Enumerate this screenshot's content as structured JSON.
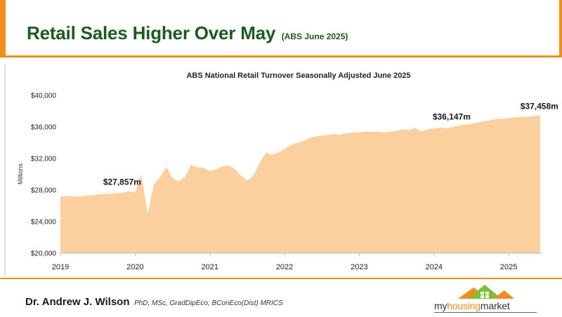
{
  "header": {
    "title": "Retail Sales Higher Over May",
    "subtitle": "(ABS June 2025)"
  },
  "footer": {
    "author": "Dr. Andrew J. Wilson",
    "credentials": "PhD, MSc, GradDipEco, BConEco(Dist) MRICS",
    "logo_parts": [
      "my",
      "housing",
      "market"
    ]
  },
  "colors": {
    "accent": "#f28c1e",
    "title": "#1c5a1f",
    "area_fill": "#fccf9f"
  },
  "chart_data": {
    "type": "area",
    "title": "ABS National Retail Turnover Seasonally Adjusted June 2025",
    "ylabel": "Millions",
    "xlabel": "",
    "ylim": [
      20000,
      40000
    ],
    "yticks": [
      20000,
      24000,
      28000,
      32000,
      36000,
      40000
    ],
    "ytick_labels": [
      "$20,000",
      "$24,000",
      "$28,000",
      "$32,000",
      "$36,000",
      "$40,000"
    ],
    "xlim": [
      2019.0,
      2025.45
    ],
    "xticks": [
      2019,
      2020,
      2021,
      2022,
      2023,
      2024,
      2025
    ],
    "xtick_labels": [
      "2019",
      "2020",
      "2021",
      "2022",
      "2023",
      "2024",
      "2025"
    ],
    "grid": false,
    "series": [
      {
        "name": "",
        "x": [
          2019.0,
          2019.08,
          2019.17,
          2019.25,
          2019.33,
          2019.42,
          2019.5,
          2019.58,
          2019.67,
          2019.75,
          2019.83,
          2019.92,
          2020.0,
          2020.08,
          2020.17,
          2020.25,
          2020.33,
          2020.42,
          2020.5,
          2020.58,
          2020.67,
          2020.75,
          2020.83,
          2020.92,
          2021.0,
          2021.08,
          2021.17,
          2021.25,
          2021.33,
          2021.42,
          2021.5,
          2021.58,
          2021.67,
          2021.75,
          2021.83,
          2021.92,
          2022.0,
          2022.08,
          2022.17,
          2022.25,
          2022.33,
          2022.42,
          2022.5,
          2022.58,
          2022.67,
          2022.75,
          2022.83,
          2022.92,
          2023.0,
          2023.08,
          2023.17,
          2023.25,
          2023.33,
          2023.42,
          2023.5,
          2023.58,
          2023.67,
          2023.75,
          2023.83,
          2023.92,
          2024.0,
          2024.08,
          2024.17,
          2024.25,
          2024.33,
          2024.42,
          2024.5,
          2024.58,
          2024.67,
          2024.75,
          2024.83,
          2024.92,
          2025.0,
          2025.08,
          2025.17,
          2025.25,
          2025.33,
          2025.42
        ],
        "values": [
          27100,
          27250,
          27200,
          27150,
          27300,
          27350,
          27450,
          27500,
          27550,
          27600,
          27650,
          27857,
          27700,
          30000,
          25000,
          28700,
          29600,
          30900,
          29500,
          29100,
          29700,
          31200,
          30900,
          30800,
          30400,
          30600,
          31000,
          31100,
          30700,
          29800,
          29200,
          29800,
          31500,
          32700,
          32500,
          32800,
          33200,
          33700,
          34000,
          34200,
          34600,
          34800,
          34900,
          35000,
          35100,
          35000,
          35200,
          35300,
          35300,
          35400,
          35400,
          35400,
          35300,
          35400,
          35500,
          35700,
          35600,
          35900,
          35400,
          35700,
          35800,
          35900,
          35850,
          36000,
          36147,
          36300,
          36400,
          36550,
          36700,
          36850,
          37000,
          37050,
          37150,
          37200,
          37250,
          37300,
          37380,
          37458
        ]
      }
    ],
    "annotations": [
      {
        "text": "$27,857m",
        "x": 2019.92,
        "y": 27857
      },
      {
        "text": "$36,147m",
        "x": 2024.33,
        "y": 36147
      },
      {
        "text": "$37,458m",
        "x": 2025.42,
        "y": 37458
      }
    ]
  }
}
